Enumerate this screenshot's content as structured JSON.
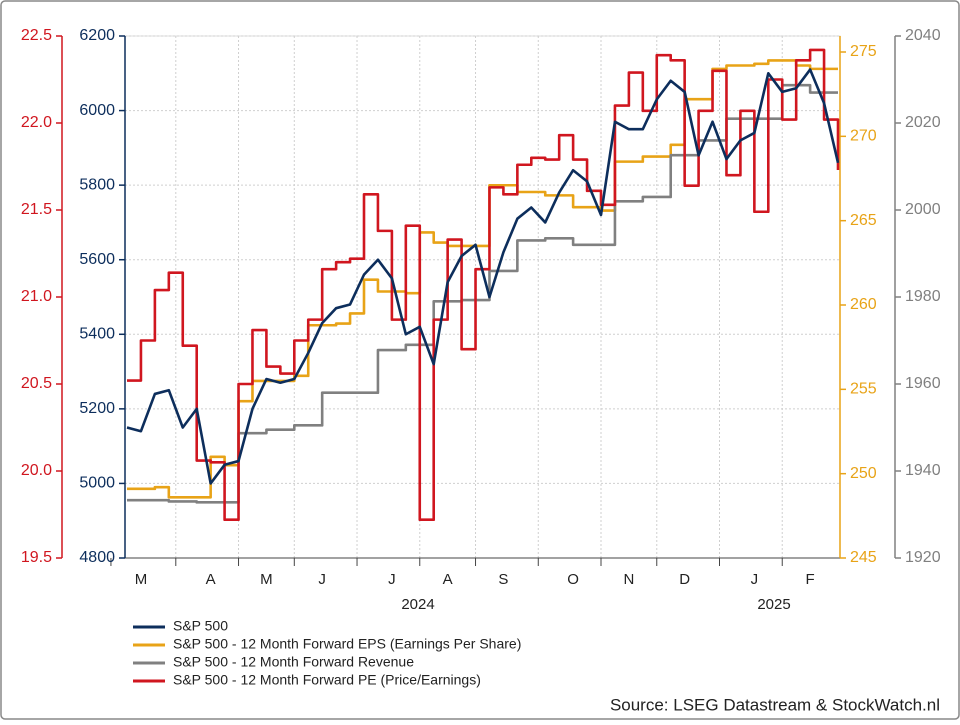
{
  "chart_data": {
    "type": "line",
    "categories": [
      null,
      "M",
      null,
      null,
      null,
      null,
      "A",
      null,
      null,
      null,
      "M",
      null,
      null,
      null,
      "J",
      null,
      null,
      null,
      null,
      "J",
      null,
      null,
      null,
      "A",
      null,
      null,
      null,
      "S",
      null,
      null,
      null,
      null,
      "O",
      null,
      null,
      null,
      "N",
      null,
      null,
      null,
      "D",
      null,
      null,
      null,
      null,
      "J",
      null,
      null,
      null,
      "F",
      null,
      null
    ],
    "year_labels": [
      "2024",
      "2025"
    ],
    "series": [
      {
        "name": "S&P 500",
        "color": "#0d2e5c",
        "axis": "y",
        "step": false,
        "values": [
          5150,
          5140,
          5240,
          5250,
          5150,
          5200,
          5000,
          5050,
          5060,
          5200,
          5280,
          5270,
          5280,
          5350,
          5430,
          5470,
          5480,
          5560,
          5600,
          5550,
          5400,
          5420,
          5320,
          5540,
          5610,
          5640,
          5500,
          5620,
          5710,
          5740,
          5700,
          5780,
          5840,
          5810,
          5720,
          5970,
          5950,
          5950,
          6030,
          6080,
          6050,
          5880,
          5970,
          5870,
          5920,
          5940,
          6100,
          6050,
          6060,
          6110,
          6020,
          5860
        ]
      },
      {
        "name": "S&P 500 - 12 Month Forward EPS (Earnings Per Share)",
        "color": "#e8a317",
        "axis": "y2",
        "step": true,
        "values": [
          249.1,
          249.1,
          249.2,
          248.6,
          248.6,
          248.6,
          251,
          250.5,
          254.3,
          255.5,
          255.5,
          255.5,
          255.8,
          258.8,
          258.8,
          258.9,
          259.5,
          261.5,
          260.8,
          260.8,
          260.7,
          264.3,
          263.7,
          263.5,
          263.5,
          263.5,
          267.1,
          267.1,
          266.7,
          266.7,
          266.5,
          266.5,
          265.8,
          265.8,
          265.6,
          268.5,
          268.5,
          268.8,
          268.8,
          269.5,
          272.2,
          272.2,
          274,
          274.2,
          274.2,
          274.3,
          274.5,
          274.5,
          274.2,
          274,
          274,
          274
        ]
      },
      {
        "name": "S&P 500 - 12 Month Forward Revenue",
        "color": "#808080",
        "axis": "y3",
        "step": true,
        "values": [
          1933.3,
          1933.3,
          1933.3,
          1933,
          1933,
          1932.8,
          1932.8,
          1932.8,
          1948.7,
          1948.7,
          1949.5,
          1949.5,
          1950.5,
          1950.5,
          1958,
          1958,
          1958,
          1958,
          1967.8,
          1967.8,
          1969,
          1969,
          1979,
          1979,
          1979.3,
          1979.3,
          1986,
          1986,
          1993,
          1993,
          1993.5,
          1993.5,
          1992,
          1992,
          1992,
          2002,
          2002,
          2003,
          2003,
          2012.6,
          2012.6,
          2016,
          2016,
          2021,
          2021,
          2021,
          2021,
          2028.7,
          2028.7,
          2027,
          2027,
          2027
        ]
      },
      {
        "name": "S&P 500 - 12 Month Forward PE (Price/Earnings)",
        "color": "#d0161f",
        "axis": "y4",
        "step": true,
        "values": [
          20.52,
          20.75,
          21.04,
          21.14,
          20.72,
          20.06,
          20.05,
          19.72,
          20.5,
          20.81,
          20.6,
          20.56,
          20.75,
          20.87,
          21.16,
          21.2,
          21.22,
          21.59,
          21.38,
          20.87,
          21.41,
          19.72,
          20.87,
          21.33,
          20.7,
          21.16,
          21.63,
          21.59,
          21.76,
          21.8,
          21.79,
          21.93,
          21.79,
          21.61,
          21.53,
          22.1,
          22.29,
          22.07,
          22.39,
          22.36,
          21.64,
          22.07,
          22.3,
          21.7,
          22.07,
          21.49,
          22.25,
          22.02,
          22.36,
          22.42,
          22.02,
          21.73
        ]
      }
    ],
    "ylim": [
      4800,
      6200
    ],
    "yticks": [
      4800,
      5000,
      5200,
      5400,
      5600,
      5800,
      6000,
      6200
    ],
    "y2lim": [
      245,
      275
    ],
    "y2ticks": [
      245,
      250,
      255,
      260,
      265,
      270,
      275
    ],
    "y3lim": [
      1920,
      2040
    ],
    "y3ticks": [
      1920,
      1940,
      1960,
      1980,
      2000,
      2020,
      2040
    ],
    "y4lim": [
      19.5,
      22.5
    ],
    "y4ticks": [
      19.5,
      {
        "value": 20,
        "label": "20.0"
      },
      20.5,
      {
        "value": 21,
        "label": "21.0"
      },
      21.5,
      {
        "value": 22,
        "label": "22.0"
      },
      22.5
    ],
    "grid": true,
    "source": "Source: LSEG Datastream & StockWatch.nl"
  }
}
